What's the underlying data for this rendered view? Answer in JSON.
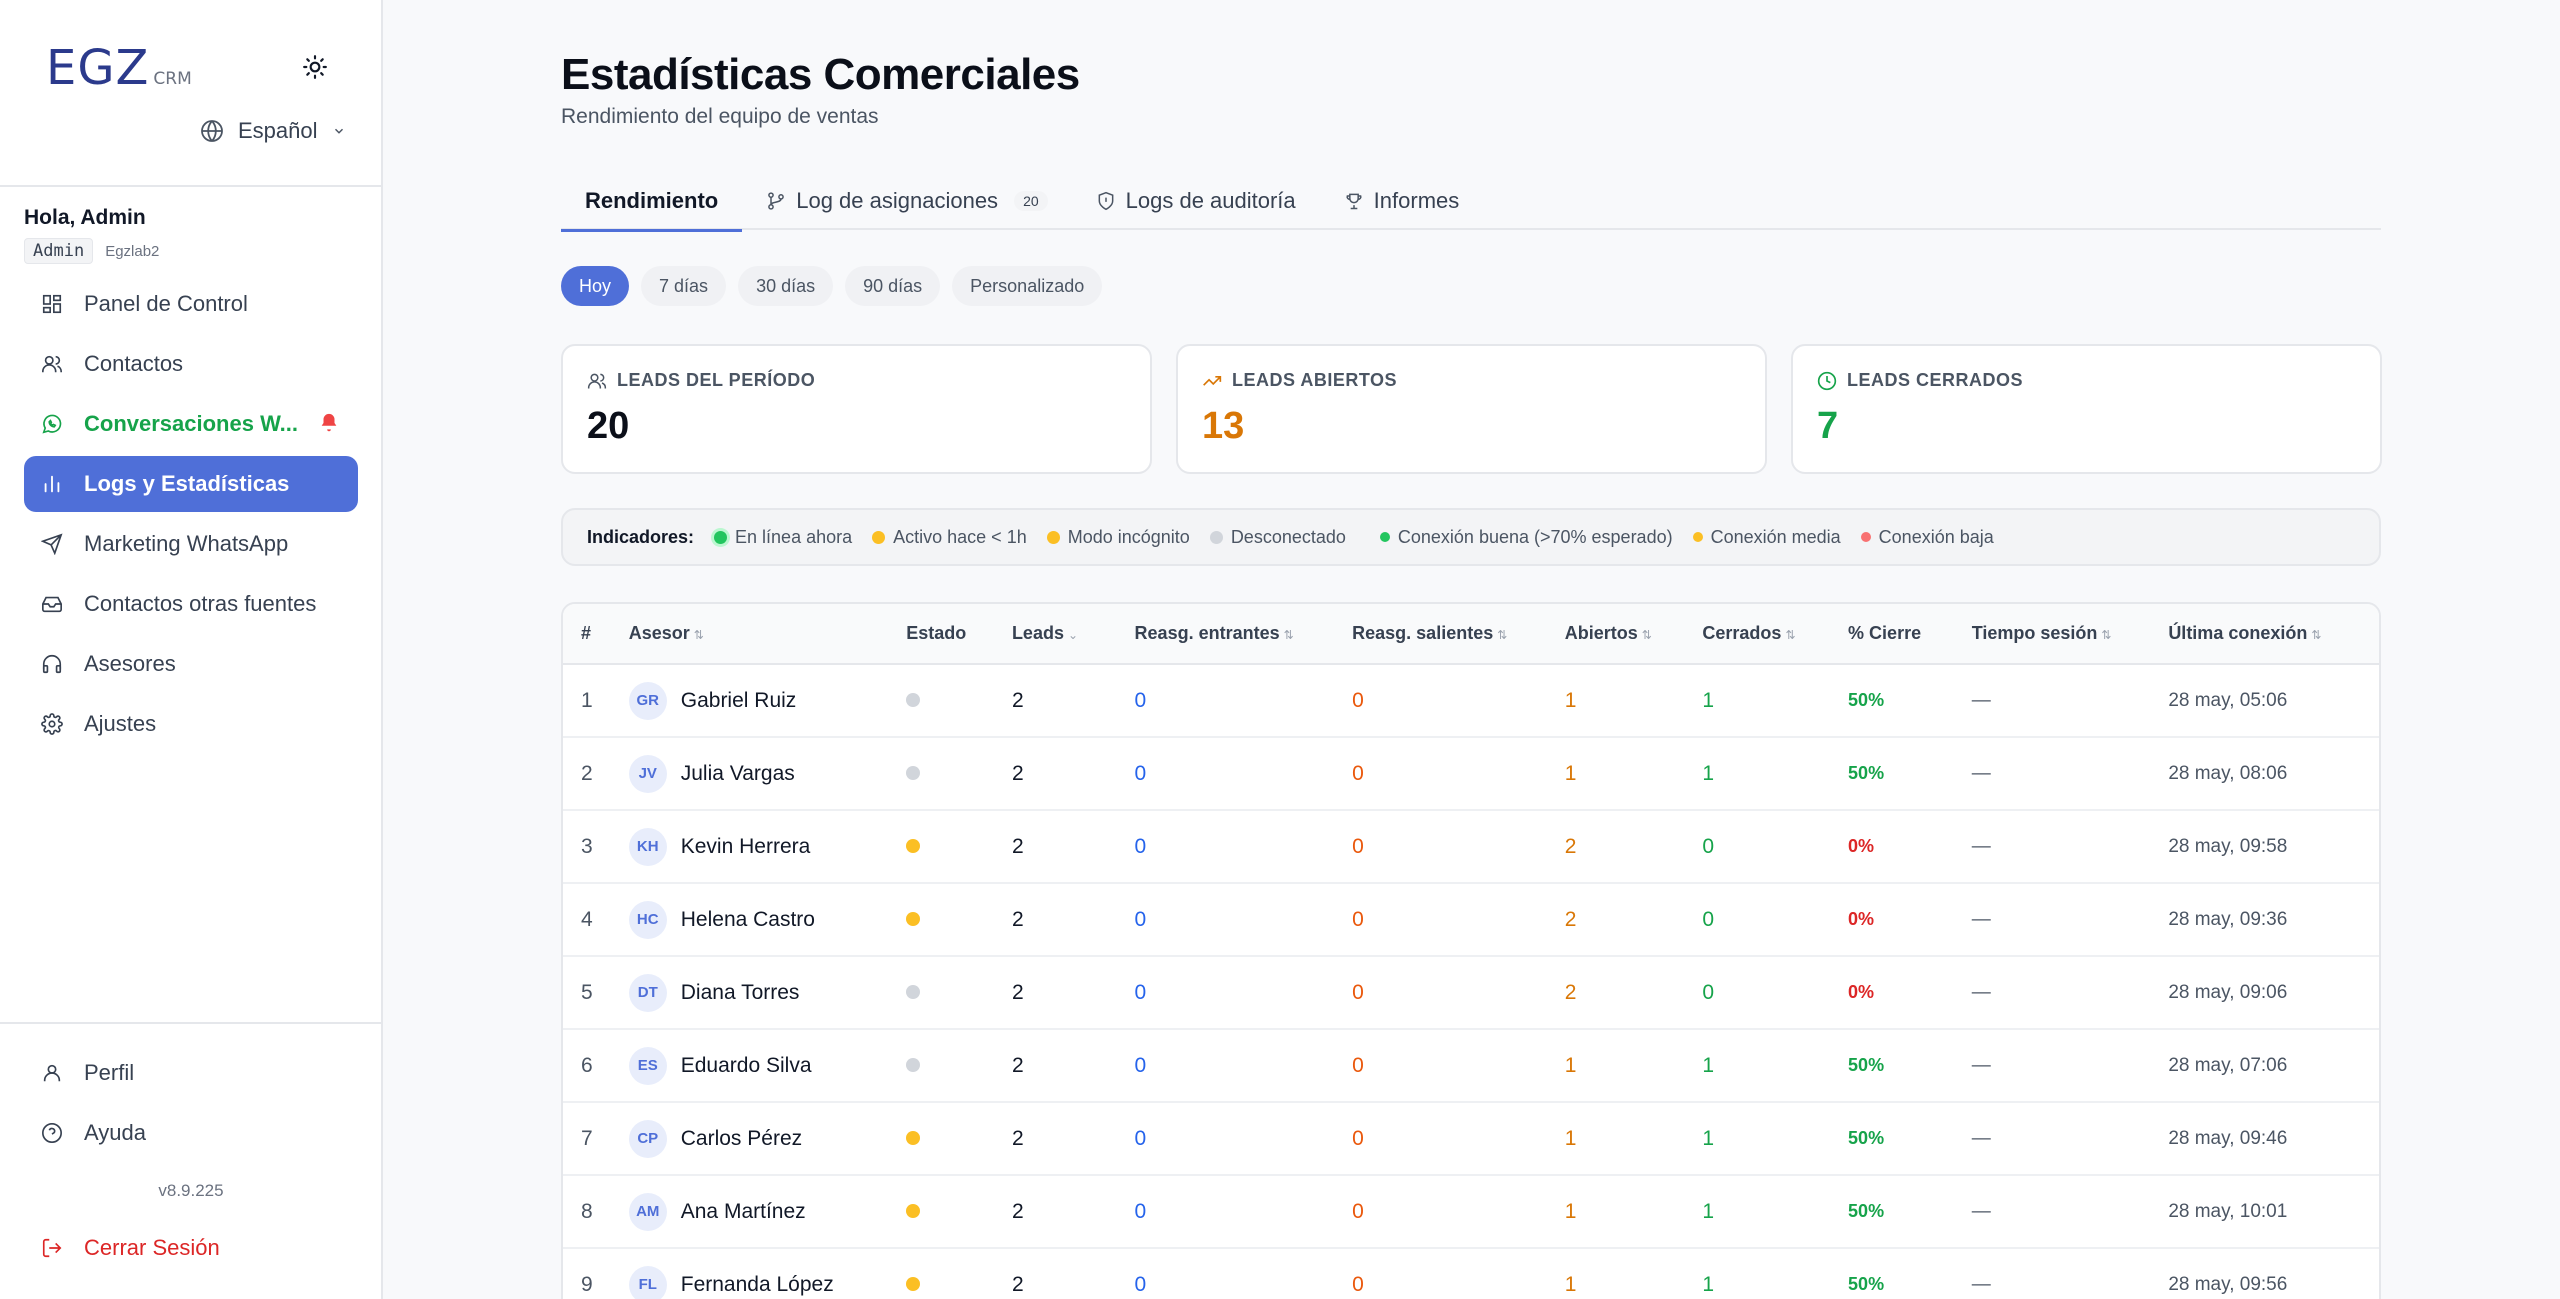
{
  "sidebar": {
    "logo": {
      "main": "EGZ",
      "sub": "CRM"
    },
    "language": "Español",
    "greeting": "Hola, Admin",
    "role": "Admin",
    "company": "Egzlab2",
    "nav": [
      {
        "label": "Panel de Control",
        "icon": "dashboard-icon"
      },
      {
        "label": "Contactos",
        "icon": "users-icon"
      },
      {
        "label": "Conversaciones W...",
        "icon": "whatsapp-icon"
      },
      {
        "label": "Logs y Estadísticas",
        "icon": "bar-chart-icon"
      },
      {
        "label": "Marketing WhatsApp",
        "icon": "send-icon"
      },
      {
        "label": "Contactos otras fuentes",
        "icon": "inbox-icon"
      },
      {
        "label": "Asesores",
        "icon": "headset-icon"
      },
      {
        "label": "Ajustes",
        "icon": "gear-icon"
      }
    ],
    "bottom_nav": [
      {
        "label": "Perfil",
        "icon": "user-icon"
      },
      {
        "label": "Ayuda",
        "icon": "help-icon"
      }
    ],
    "version": "v8.9.225",
    "logout": "Cerrar Sesión"
  },
  "header": {
    "title": "Estadísticas Comerciales",
    "subtitle": "Rendimiento del equipo de ventas"
  },
  "tabs": [
    {
      "label": "Rendimiento"
    },
    {
      "label": "Log de asignaciones",
      "count": "20"
    },
    {
      "label": "Logs de auditoría"
    },
    {
      "label": "Informes"
    }
  ],
  "ranges": [
    "Hoy",
    "7 días",
    "30 días",
    "90 días",
    "Personalizado"
  ],
  "kpis": [
    {
      "label": "LEADS DEL PERÍODO",
      "value": "20",
      "color": "#0b0f19"
    },
    {
      "label": "LEADS ABIERTOS",
      "value": "13",
      "color": "#d97706"
    },
    {
      "label": "LEADS CERRADOS",
      "value": "7",
      "color": "#16a34a"
    }
  ],
  "legend": {
    "title": "Indicadores:",
    "items": [
      {
        "label": "En línea ahora",
        "color": "#22c55e"
      },
      {
        "label": "Activo hace < 1h",
        "color": "#fbbf24"
      },
      {
        "label": "Modo incógnito",
        "color": "#fbbf24"
      },
      {
        "label": "Desconectado",
        "color": "#d1d5db"
      },
      {
        "label": "Conexión buena (>70% esperado)",
        "color": "#22c55e"
      },
      {
        "label": "Conexión media",
        "color": "#fbbf24"
      },
      {
        "label": "Conexión baja",
        "color": "#f87171"
      }
    ]
  },
  "table": {
    "columns": [
      "#",
      "Asesor",
      "Estado",
      "Leads",
      "Reasg. entrantes",
      "Reasg. salientes",
      "Abiertos",
      "Cerrados",
      "% Cierre",
      "Tiempo sesión",
      "Última conexión"
    ],
    "rows": [
      {
        "n": "1",
        "initials": "GR",
        "name": "Gabriel Ruiz",
        "estado": "#d1d5db",
        "leads": "2",
        "entrantes": "0",
        "salientes": "0",
        "abiertos": "1",
        "cerrados": "1",
        "cierre": "50%",
        "sesion": "—",
        "ultima": "28 may, 05:06"
      },
      {
        "n": "2",
        "initials": "JV",
        "name": "Julia Vargas",
        "estado": "#d1d5db",
        "leads": "2",
        "entrantes": "0",
        "salientes": "0",
        "abiertos": "1",
        "cerrados": "1",
        "cierre": "50%",
        "sesion": "—",
        "ultima": "28 may, 08:06"
      },
      {
        "n": "3",
        "initials": "KH",
        "name": "Kevin Herrera",
        "estado": "#fbbf24",
        "leads": "2",
        "entrantes": "0",
        "salientes": "0",
        "abiertos": "2",
        "cerrados": "0",
        "cierre": "0%",
        "sesion": "—",
        "ultima": "28 may, 09:58"
      },
      {
        "n": "4",
        "initials": "HC",
        "name": "Helena Castro",
        "estado": "#fbbf24",
        "leads": "2",
        "entrantes": "0",
        "salientes": "0",
        "abiertos": "2",
        "cerrados": "0",
        "cierre": "0%",
        "sesion": "—",
        "ultima": "28 may, 09:36"
      },
      {
        "n": "5",
        "initials": "DT",
        "name": "Diana Torres",
        "estado": "#d1d5db",
        "leads": "2",
        "entrantes": "0",
        "salientes": "0",
        "abiertos": "2",
        "cerrados": "0",
        "cierre": "0%",
        "sesion": "—",
        "ultima": "28 may, 09:06"
      },
      {
        "n": "6",
        "initials": "ES",
        "name": "Eduardo Silva",
        "estado": "#d1d5db",
        "leads": "2",
        "entrantes": "0",
        "salientes": "0",
        "abiertos": "1",
        "cerrados": "1",
        "cierre": "50%",
        "sesion": "—",
        "ultima": "28 may, 07:06"
      },
      {
        "n": "7",
        "initials": "CP",
        "name": "Carlos Pérez",
        "estado": "#fbbf24",
        "leads": "2",
        "entrantes": "0",
        "salientes": "0",
        "abiertos": "1",
        "cerrados": "1",
        "cierre": "50%",
        "sesion": "—",
        "ultima": "28 may, 09:46"
      },
      {
        "n": "8",
        "initials": "AM",
        "name": "Ana Martínez",
        "estado": "#fbbf24",
        "leads": "2",
        "entrantes": "0",
        "salientes": "0",
        "abiertos": "1",
        "cerrados": "1",
        "cierre": "50%",
        "sesion": "—",
        "ultima": "28 may, 10:01"
      },
      {
        "n": "9",
        "initials": "FL",
        "name": "Fernanda López",
        "estado": "#fbbf24",
        "leads": "2",
        "entrantes": "0",
        "salientes": "0",
        "abiertos": "1",
        "cerrados": "1",
        "cierre": "50%",
        "sesion": "—",
        "ultima": "28 may, 09:56"
      }
    ]
  },
  "colors": {
    "accent": "#4f6fd8",
    "whatsapp_green": "#16a34a",
    "danger": "#dc2626"
  }
}
